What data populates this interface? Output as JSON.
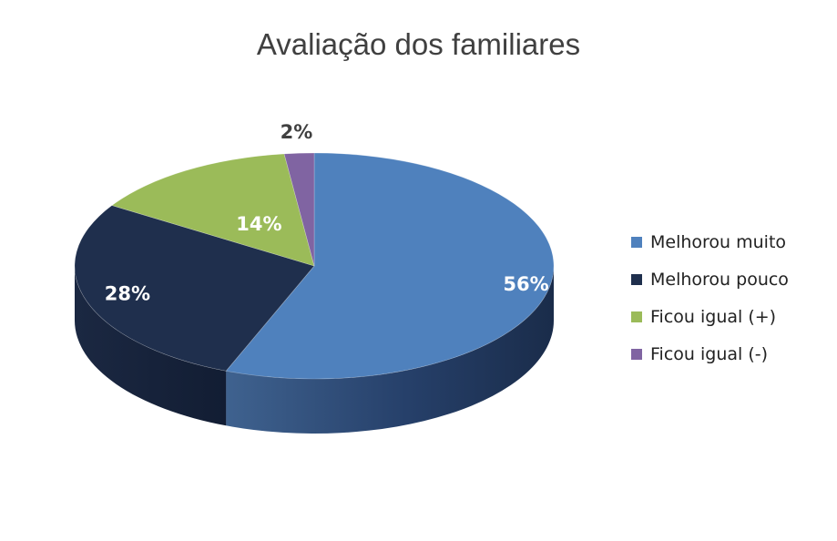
{
  "chart_data": {
    "type": "pie",
    "title": "Avaliação dos familiares",
    "categories": [
      "Melhorou muito",
      "Melhorou pouco",
      "Ficou igual (+)",
      "Ficou igual (-)"
    ],
    "values": [
      56,
      28,
      14,
      2
    ],
    "labels": [
      "56%",
      "28%",
      "14%",
      "2%"
    ],
    "colors": [
      "#4f81bd",
      "#1f2f4d",
      "#9bbb59",
      "#8064a2"
    ],
    "legend_position": "right",
    "style": "3d"
  }
}
